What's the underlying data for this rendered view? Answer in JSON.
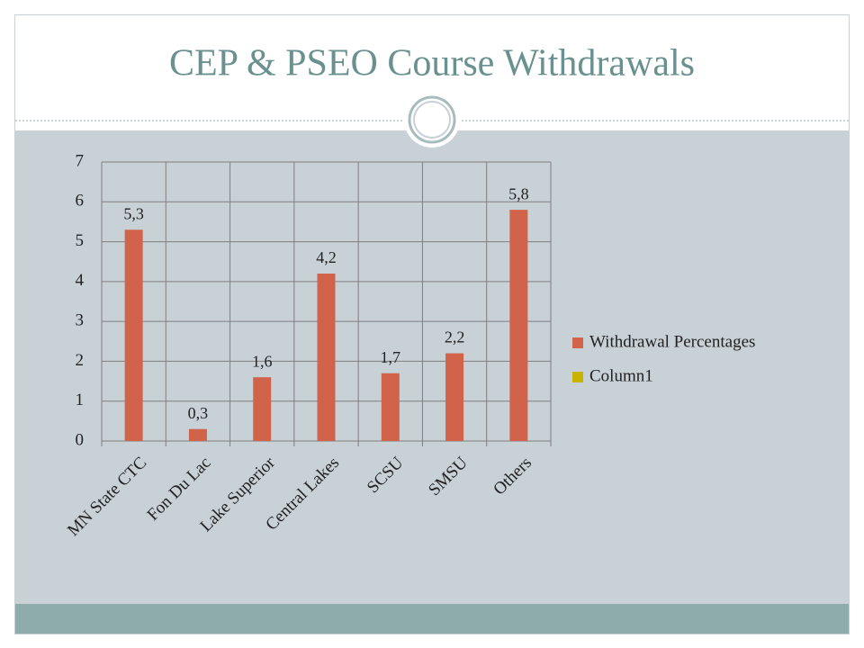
{
  "chart_data": {
    "type": "bar",
    "title": "CEP & PSEO Course Withdrawals",
    "categories": [
      "MN State CTC",
      "Fon Du Lac",
      "Lake Superior",
      "Central Lakes",
      "SCSU",
      "SMSU",
      "Others"
    ],
    "series": [
      {
        "name": "Withdrawal Percentages",
        "color": "#d0634a",
        "values": [
          5.3,
          0.3,
          1.6,
          4.2,
          1.7,
          2.2,
          5.8
        ],
        "value_labels": [
          "5,3",
          "0,3",
          "1,6",
          "4,2",
          "1,7",
          "2,2",
          "5,8"
        ]
      },
      {
        "name": "Column1",
        "color": "#c8b400",
        "values": [
          null,
          null,
          null,
          null,
          null,
          null,
          null
        ]
      }
    ],
    "ylim": [
      0,
      7
    ],
    "yticks": [
      0,
      1,
      2,
      3,
      4,
      5,
      6,
      7
    ],
    "grid": true,
    "legend": "right"
  }
}
